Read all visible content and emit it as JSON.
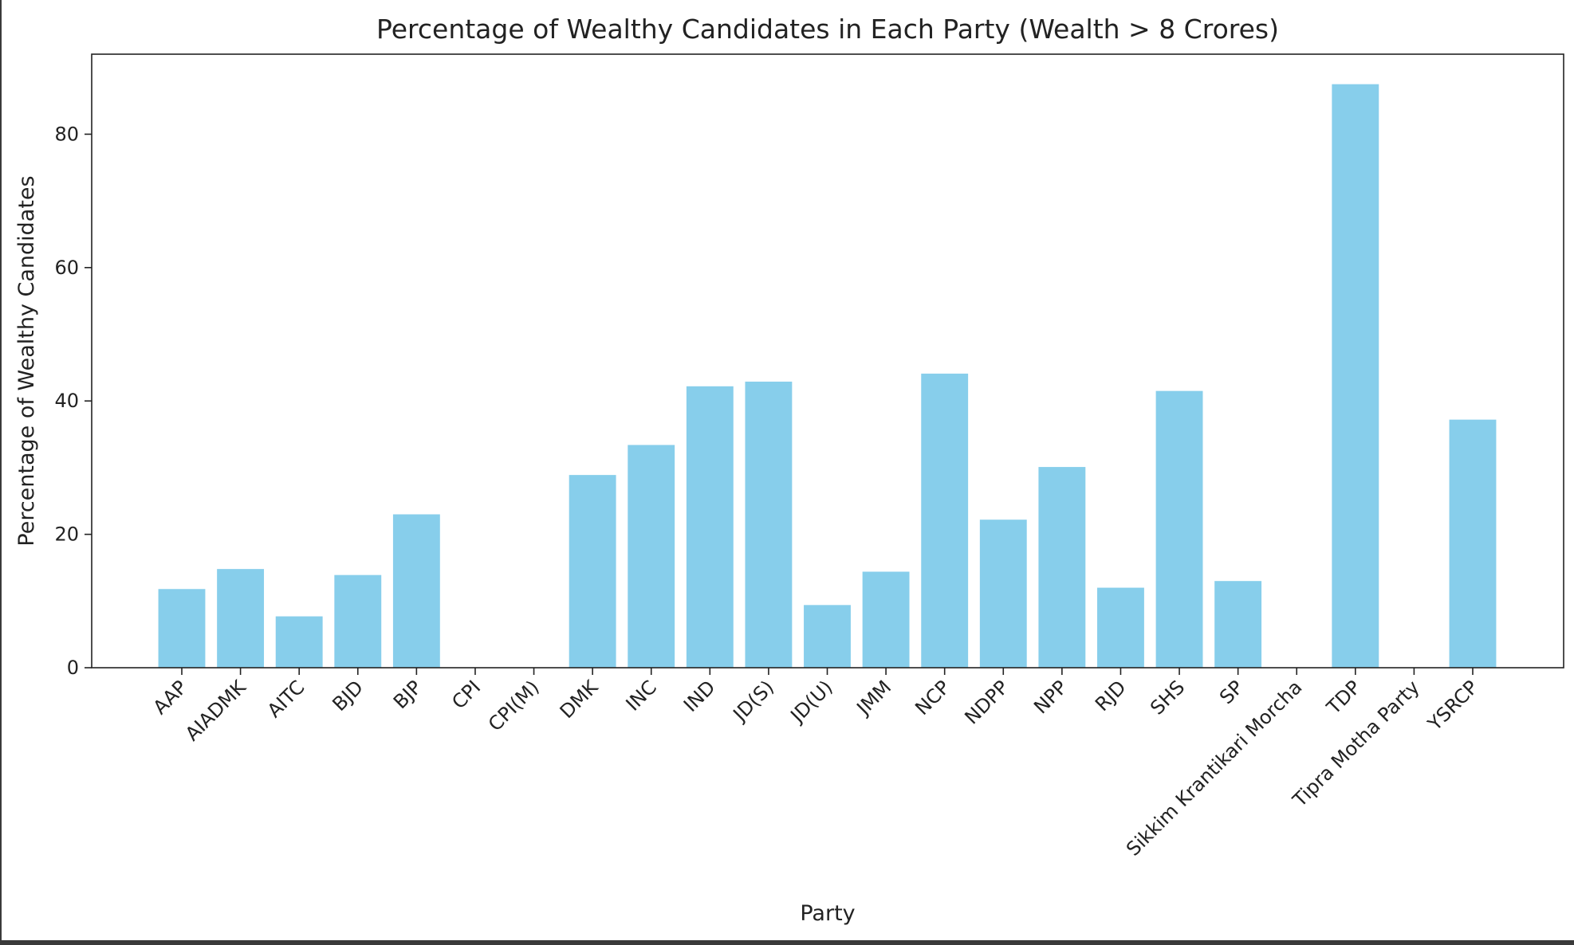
{
  "chart_data": {
    "type": "bar",
    "title": "Percentage of Wealthy Candidates in Each Party (Wealth > 8 Crores)",
    "xlabel": "Party",
    "ylabel": "Percentage of Wealthy Candidates",
    "ylim": [
      0,
      92
    ],
    "yticks": [
      0,
      20,
      40,
      60,
      80
    ],
    "grid": false,
    "bar_color": "#87CEEB",
    "categories": [
      "AAP",
      "AIADMK",
      "AITC",
      "BJD",
      "BJP",
      "CPI",
      "CPI(M)",
      "DMK",
      "INC",
      "IND",
      "JD(S)",
      "JD(U)",
      "JMM",
      "NCP",
      "NDPP",
      "NPP",
      "RJD",
      "SHS",
      "SP",
      "Sikkim Krantikari Morcha",
      "TDP",
      "Tipra Motha Party",
      "YSRCP"
    ],
    "values": [
      11.8,
      14.8,
      7.7,
      13.9,
      23.0,
      0,
      0,
      28.9,
      33.4,
      42.2,
      42.9,
      9.4,
      14.4,
      44.1,
      22.2,
      30.1,
      12.0,
      41.5,
      13.0,
      0,
      87.5,
      0,
      37.2
    ]
  }
}
